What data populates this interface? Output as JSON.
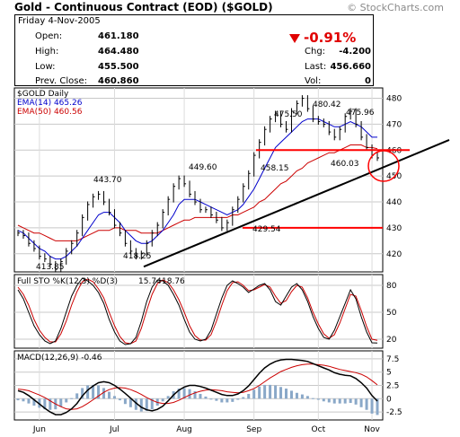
{
  "header": {
    "title": "Gold - Continuous Contract (EOD) ($GOLD)",
    "site": "© StockCharts.com",
    "date": "Friday  4-Nov-2005",
    "left": [
      {
        "label": "Open:",
        "value": "461.180"
      },
      {
        "label": "High:",
        "value": "464.480"
      },
      {
        "label": "Low:",
        "value": "455.500"
      },
      {
        "label": "Prev. Close:",
        "value": "460.860"
      }
    ],
    "change_pct": "-0.91%",
    "right": [
      {
        "label": "Chg:",
        "value": "-4.200"
      },
      {
        "label": "Last:",
        "value": "456.660"
      },
      {
        "label": "Vol:",
        "value": "0"
      }
    ]
  },
  "colors": {
    "up": "#e00000",
    "ema14": "#0000cc",
    "ema50": "#cc0000",
    "trend": "#000000",
    "horizontal_line": "#ff0000",
    "price_bars": "#000000",
    "macd_hist": "#8aa8c8"
  },
  "chart_data": [
    {
      "type": "line",
      "panel": "price",
      "legend": [
        "$GOLD Daily",
        "EMA(14) 465.26",
        "EMA(50) 460.56"
      ],
      "x_labels": [
        "Jun",
        "Jul",
        "Aug",
        "Sep",
        "Oct",
        "Nov"
      ],
      "ylim": [
        413,
        484
      ],
      "y_ticks": [
        420,
        430,
        440,
        450,
        460,
        470,
        480
      ],
      "annotations": [
        {
          "label": "413.85",
          "x": "Jun",
          "y": 413.85
        },
        {
          "label": "443.70",
          "x": "Jul",
          "y": 443.7
        },
        {
          "label": "418.25",
          "x": "Jul-Aug",
          "y": 418.25
        },
        {
          "label": "449.60",
          "x": "Aug",
          "y": 449.6
        },
        {
          "label": "429.54",
          "x": "Sep",
          "y": 429.54
        },
        {
          "label": "475.50",
          "x": "Sep-Oct",
          "y": 475.5
        },
        {
          "label": "458.15",
          "x": "Sep-Oct",
          "y": 458.15
        },
        {
          "label": "480.42",
          "x": "Oct",
          "y": 480.42
        },
        {
          "label": "475.96",
          "x": "Oct-Nov",
          "y": 475.96
        },
        {
          "label": "460.03",
          "x": "Oct",
          "y": 460.03
        }
      ],
      "series": [
        {
          "name": "$GOLD Daily",
          "values": [
            428,
            427,
            424,
            422,
            419,
            418,
            416,
            414,
            417,
            421,
            424,
            428,
            434,
            439,
            442,
            443,
            440,
            436,
            431,
            428,
            424,
            421,
            419,
            420,
            424,
            428,
            431,
            436,
            441,
            446,
            449,
            447,
            443,
            440,
            437,
            437,
            435,
            433,
            430,
            432,
            437,
            441,
            446,
            451,
            458,
            463,
            468,
            472,
            474,
            470,
            468,
            475,
            478,
            480,
            476,
            472,
            471,
            470,
            467,
            465,
            468,
            473,
            475,
            470,
            465,
            461,
            458,
            457
          ]
        },
        {
          "name": "EMA(14)",
          "values": [
            429,
            428,
            426,
            424,
            422,
            421,
            419,
            418,
            418,
            419,
            421,
            423,
            426,
            429,
            432,
            435,
            436,
            436,
            434,
            432,
            429,
            427,
            425,
            424,
            424,
            425,
            427,
            429,
            432,
            435,
            439,
            441,
            441,
            441,
            440,
            439,
            438,
            437,
            436,
            435,
            436,
            437,
            439,
            442,
            445,
            449,
            453,
            457,
            461,
            463,
            465,
            467,
            469,
            471,
            472,
            472,
            472,
            471,
            470,
            469,
            469,
            470,
            471,
            470,
            469,
            467,
            465,
            465
          ]
        },
        {
          "name": "EMA(50)",
          "values": [
            431,
            430,
            429,
            428,
            428,
            427,
            426,
            425,
            425,
            425,
            425,
            425,
            426,
            427,
            428,
            429,
            429,
            429,
            430,
            430,
            429,
            429,
            429,
            428,
            428,
            428,
            428,
            429,
            430,
            431,
            432,
            433,
            433,
            434,
            434,
            434,
            434,
            434,
            434,
            434,
            435,
            435,
            436,
            437,
            438,
            440,
            441,
            443,
            445,
            447,
            448,
            450,
            452,
            453,
            455,
            456,
            457,
            458,
            459,
            459,
            460,
            461,
            462,
            462,
            462,
            461,
            461,
            460.56
          ]
        }
      ],
      "lines": [
        {
          "name": "trendline",
          "from": [
            4,
            415
          ],
          "to": [
            69,
            457
          ]
        },
        {
          "name": "support-line",
          "y": 430
        },
        {
          "name": "resistance-line",
          "y": 460
        }
      ]
    },
    {
      "type": "line",
      "panel": "stochastic",
      "legend": "Full STO %K(12,3) %D(3)",
      "legend_values": [
        "15.74",
        "18.76"
      ],
      "ylim": [
        10,
        92
      ],
      "y_ticks": [
        20,
        50,
        80
      ],
      "series": [
        {
          "name": "%K",
          "values": [
            75,
            65,
            50,
            35,
            25,
            18,
            15,
            18,
            32,
            50,
            68,
            80,
            88,
            85,
            80,
            72,
            60,
            42,
            28,
            18,
            14,
            15,
            22,
            40,
            62,
            78,
            86,
            85,
            80,
            70,
            58,
            42,
            28,
            20,
            18,
            20,
            30,
            48,
            66,
            80,
            85,
            82,
            78,
            72,
            76,
            80,
            82,
            75,
            62,
            58,
            68,
            78,
            82,
            75,
            62,
            45,
            32,
            22,
            20,
            30,
            45,
            60,
            75,
            65,
            45,
            28,
            16,
            15.74
          ]
        },
        {
          "name": "%D",
          "values": [
            78,
            70,
            58,
            42,
            30,
            22,
            17,
            17,
            26,
            40,
            58,
            73,
            84,
            87,
            84,
            76,
            66,
            50,
            35,
            23,
            16,
            15,
            18,
            32,
            52,
            70,
            82,
            86,
            83,
            75,
            64,
            50,
            35,
            24,
            19,
            19,
            25,
            40,
            58,
            74,
            83,
            84,
            80,
            74,
            75,
            78,
            81,
            78,
            68,
            60,
            63,
            73,
            80,
            78,
            66,
            50,
            37,
            26,
            21,
            25,
            38,
            54,
            70,
            68,
            52,
            34,
            20,
            18.76
          ]
        }
      ]
    },
    {
      "type": "line",
      "panel": "macd",
      "legend": "MACD(12,26,9) -0.46",
      "ylim": [
        -4,
        9
      ],
      "y_ticks": [
        -2.5,
        0,
        2.5,
        5,
        7.5
      ],
      "series": [
        {
          "name": "MACD",
          "values": [
            1.5,
            1.2,
            0.6,
            -0.2,
            -1.0,
            -1.8,
            -2.5,
            -3.0,
            -3.0,
            -2.6,
            -1.9,
            -0.9,
            0.5,
            1.6,
            2.4,
            3.0,
            3.2,
            3.0,
            2.5,
            1.8,
            1.0,
            0.1,
            -0.8,
            -1.6,
            -2.1,
            -2.3,
            -2.0,
            -1.4,
            -0.4,
            0.7,
            1.6,
            2.2,
            2.5,
            2.5,
            2.3,
            2.0,
            1.6,
            1.2,
            0.8,
            0.6,
            0.6,
            0.9,
            1.5,
            2.4,
            3.6,
            4.8,
            5.8,
            6.5,
            7.0,
            7.3,
            7.4,
            7.4,
            7.3,
            7.2,
            7.0,
            6.6,
            6.2,
            5.8,
            5.4,
            4.9,
            4.6,
            4.4,
            4.3,
            3.8,
            3.0,
            2.0,
            0.6,
            -0.46
          ]
        },
        {
          "name": "Signal",
          "values": [
            1.8,
            1.7,
            1.5,
            1.1,
            0.7,
            0.2,
            -0.4,
            -1.0,
            -1.5,
            -1.9,
            -2.0,
            -1.9,
            -1.5,
            -0.9,
            -0.2,
            0.5,
            1.2,
            1.7,
            2.0,
            2.1,
            2.0,
            1.7,
            1.3,
            0.8,
            0.2,
            -0.3,
            -0.7,
            -0.9,
            -0.9,
            -0.7,
            -0.3,
            0.2,
            0.7,
            1.1,
            1.4,
            1.6,
            1.7,
            1.6,
            1.5,
            1.3,
            1.2,
            1.1,
            1.2,
            1.5,
            1.9,
            2.5,
            3.2,
            3.9,
            4.5,
            5.1,
            5.5,
            5.9,
            6.2,
            6.4,
            6.5,
            6.5,
            6.4,
            6.3,
            6.1,
            5.8,
            5.5,
            5.3,
            5.1,
            4.9,
            4.6,
            4.1,
            3.4,
            2.6
          ]
        }
      ]
    }
  ]
}
